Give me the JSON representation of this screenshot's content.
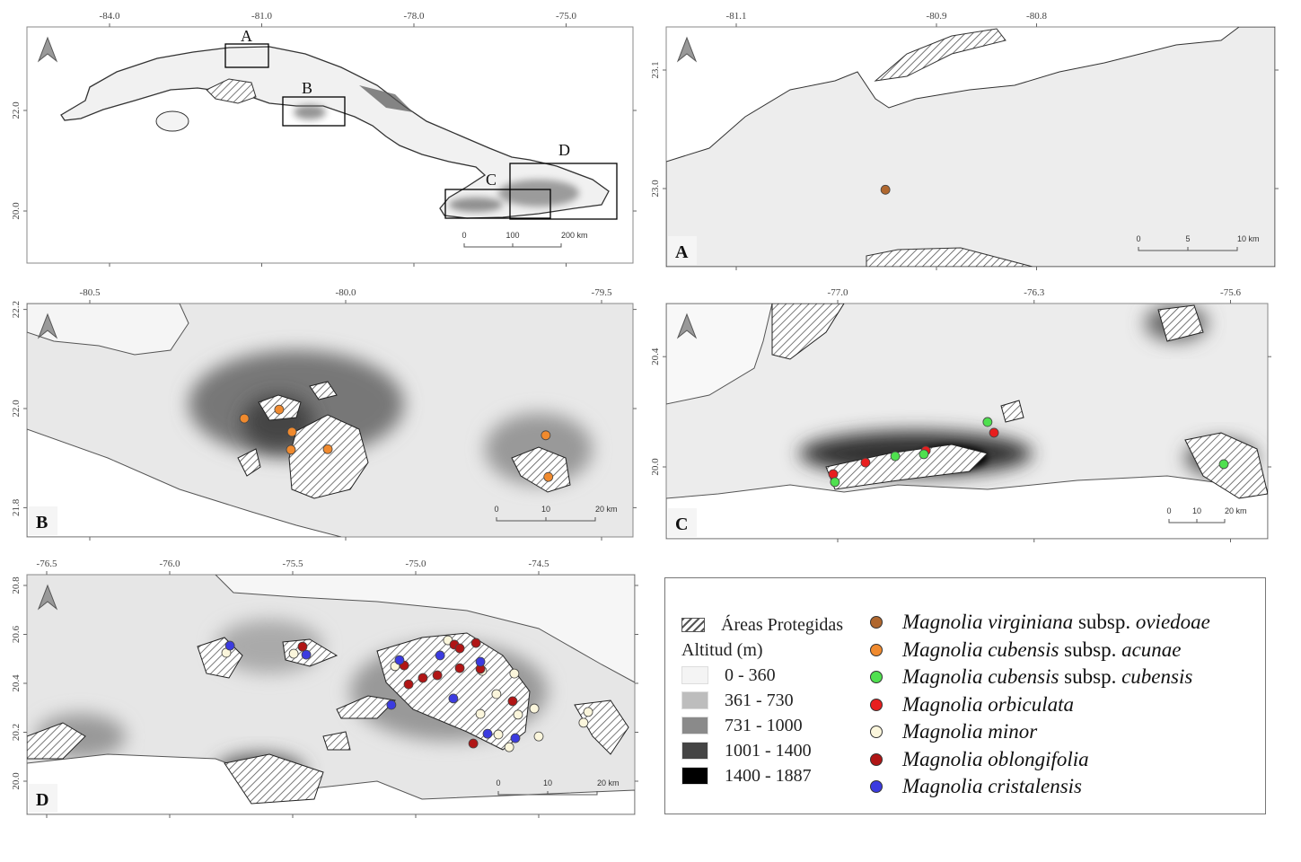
{
  "overview": {
    "lon_ticks": [
      "-84.0",
      "-81.0",
      "-78.0",
      "-75.0"
    ],
    "lat_ticks": [
      "22.0",
      "20.0"
    ],
    "inset_labels": [
      "A",
      "B",
      "C",
      "D"
    ],
    "scale": [
      "0",
      "100",
      "200 km"
    ]
  },
  "panels": {
    "A": {
      "label": "A",
      "lon_ticks": [
        "-81.1",
        "-80.9",
        "-80.8"
      ],
      "lat_ticks": [
        "23.1",
        "23.0"
      ],
      "scale": [
        "0",
        "5",
        "10 km"
      ]
    },
    "B": {
      "label": "B",
      "lon_ticks": [
        "-80.5",
        "-80.0",
        "-79.5"
      ],
      "lat_ticks": [
        "22.2",
        "22.0",
        "21.8"
      ],
      "scale": [
        "0",
        "10",
        "20 km"
      ]
    },
    "C": {
      "label": "C",
      "lon_ticks": [
        "-77.0",
        "-76.3",
        "-75.6"
      ],
      "lat_ticks": [
        "20.4",
        "20.0"
      ],
      "scale": [
        "0",
        "10",
        "20 km"
      ]
    },
    "D": {
      "label": "D",
      "lon_ticks": [
        "-76.5",
        "-76.0",
        "-75.5",
        "-75.0",
        "-74.5"
      ],
      "lat_ticks": [
        "20.8",
        "20.6",
        "20.4",
        "20.2",
        "20.0"
      ],
      "scale": [
        "0",
        "10",
        "20 km"
      ]
    }
  },
  "legend": {
    "protected_areas": "Áreas Protegidas",
    "altitude_title": "Altitud",
    "altitude_unit": "(m)",
    "altitude_classes": [
      {
        "label": "0 - 360",
        "color": "#f4f4f4"
      },
      {
        "label": "361 - 730",
        "color": "#bdbdbd"
      },
      {
        "label": "731 - 1000",
        "color": "#8a8a8a"
      },
      {
        "label": "1001 - 1400",
        "color": "#444444"
      },
      {
        "label": "1400 - 1887",
        "color": "#000000"
      }
    ],
    "species": [
      {
        "genus": "Magnolia",
        "epithet": "virginiana",
        "rank": "subsp.",
        "infra": "oviedoae",
        "color": "#b0672e"
      },
      {
        "genus": "Magnolia",
        "epithet": "cubensis",
        "rank": "subsp.",
        "infra": "acunae",
        "color": "#f08a2e"
      },
      {
        "genus": "Magnolia",
        "epithet": "cubensis",
        "rank": "subsp.",
        "infra": "cubensis",
        "color": "#4fe04f"
      },
      {
        "genus": "Magnolia",
        "epithet": "orbiculata",
        "rank": "",
        "infra": "",
        "color": "#e81e1e"
      },
      {
        "genus": "Magnolia",
        "epithet": "minor",
        "rank": "",
        "infra": "",
        "color": "#fbf6dc"
      },
      {
        "genus": "Magnolia",
        "epithet": "oblongifolia",
        "rank": "",
        "infra": "",
        "color": "#b01515"
      },
      {
        "genus": "Magnolia",
        "epithet": "cristalensis",
        "rank": "",
        "infra": "",
        "color": "#3b3be0"
      }
    ]
  },
  "occurrences": {
    "A": [
      {
        "sp": 0,
        "lon": -80.951,
        "lat": 22.999
      }
    ],
    "B": [
      {
        "sp": 1,
        "lon": -80.198,
        "lat": 21.98
      },
      {
        "sp": 1,
        "lon": -80.13,
        "lat": 21.998
      },
      {
        "sp": 1,
        "lon": -80.105,
        "lat": 21.953
      },
      {
        "sp": 1,
        "lon": -80.107,
        "lat": 21.917
      },
      {
        "sp": 1,
        "lon": -80.035,
        "lat": 21.918
      },
      {
        "sp": 1,
        "lon": -79.609,
        "lat": 21.946
      },
      {
        "sp": 1,
        "lon": -79.604,
        "lat": 21.862
      }
    ],
    "C": [
      {
        "sp": 3,
        "lon": -77.016,
        "lat": 19.974
      },
      {
        "sp": 3,
        "lon": -76.901,
        "lat": 20.016
      },
      {
        "sp": 3,
        "lon": -76.686,
        "lat": 20.059
      },
      {
        "sp": 3,
        "lon": -76.443,
        "lat": 20.124
      },
      {
        "sp": 2,
        "lon": -77.01,
        "lat": 19.945
      },
      {
        "sp": 2,
        "lon": -76.795,
        "lat": 20.039
      },
      {
        "sp": 2,
        "lon": -76.693,
        "lat": 20.046
      },
      {
        "sp": 2,
        "lon": -76.466,
        "lat": 20.163
      },
      {
        "sp": 2,
        "lon": -75.624,
        "lat": 20.01
      }
    ],
    "D": [
      {
        "sp": 4,
        "lon": -75.77,
        "lat": 20.525
      },
      {
        "sp": 4,
        "lon": -75.496,
        "lat": 20.521
      },
      {
        "sp": 4,
        "lon": -75.084,
        "lat": 20.47
      },
      {
        "sp": 4,
        "lon": -74.73,
        "lat": 20.451
      },
      {
        "sp": 4,
        "lon": -74.599,
        "lat": 20.44
      },
      {
        "sp": 4,
        "lon": -74.672,
        "lat": 20.356
      },
      {
        "sp": 4,
        "lon": -74.518,
        "lat": 20.297
      },
      {
        "sp": 4,
        "lon": -74.584,
        "lat": 20.272
      },
      {
        "sp": 4,
        "lon": -74.737,
        "lat": 20.275
      },
      {
        "sp": 4,
        "lon": -74.664,
        "lat": 20.191
      },
      {
        "sp": 4,
        "lon": -74.5,
        "lat": 20.183
      },
      {
        "sp": 4,
        "lon": -74.62,
        "lat": 20.139
      },
      {
        "sp": 4,
        "lon": -74.318,
        "lat": 20.239
      },
      {
        "sp": 4,
        "lon": -74.299,
        "lat": 20.283
      },
      {
        "sp": 4,
        "lon": -74.869,
        "lat": 20.576
      },
      {
        "sp": 5,
        "lon": -75.46,
        "lat": 20.55
      },
      {
        "sp": 5,
        "lon": -75.047,
        "lat": 20.473
      },
      {
        "sp": 5,
        "lon": -74.971,
        "lat": 20.422
      },
      {
        "sp": 5,
        "lon": -74.912,
        "lat": 20.433
      },
      {
        "sp": 5,
        "lon": -74.843,
        "lat": 20.558
      },
      {
        "sp": 5,
        "lon": -74.821,
        "lat": 20.462
      },
      {
        "sp": 5,
        "lon": -74.755,
        "lat": 20.565
      },
      {
        "sp": 5,
        "lon": -74.737,
        "lat": 20.459
      },
      {
        "sp": 5,
        "lon": -74.821,
        "lat": 20.543
      },
      {
        "sp": 5,
        "lon": -75.029,
        "lat": 20.396
      },
      {
        "sp": 5,
        "lon": -74.606,
        "lat": 20.327
      },
      {
        "sp": 5,
        "lon": -74.766,
        "lat": 20.154
      },
      {
        "sp": 6,
        "lon": -75.755,
        "lat": 20.554
      },
      {
        "sp": 6,
        "lon": -75.445,
        "lat": 20.517
      },
      {
        "sp": 6,
        "lon": -75.066,
        "lat": 20.495
      },
      {
        "sp": 6,
        "lon": -74.901,
        "lat": 20.514
      },
      {
        "sp": 6,
        "lon": -74.737,
        "lat": 20.488
      },
      {
        "sp": 6,
        "lon": -74.847,
        "lat": 20.338
      },
      {
        "sp": 6,
        "lon": -75.099,
        "lat": 20.312
      },
      {
        "sp": 6,
        "lon": -74.708,
        "lat": 20.194
      },
      {
        "sp": 6,
        "lon": -74.595,
        "lat": 20.176
      }
    ]
  }
}
